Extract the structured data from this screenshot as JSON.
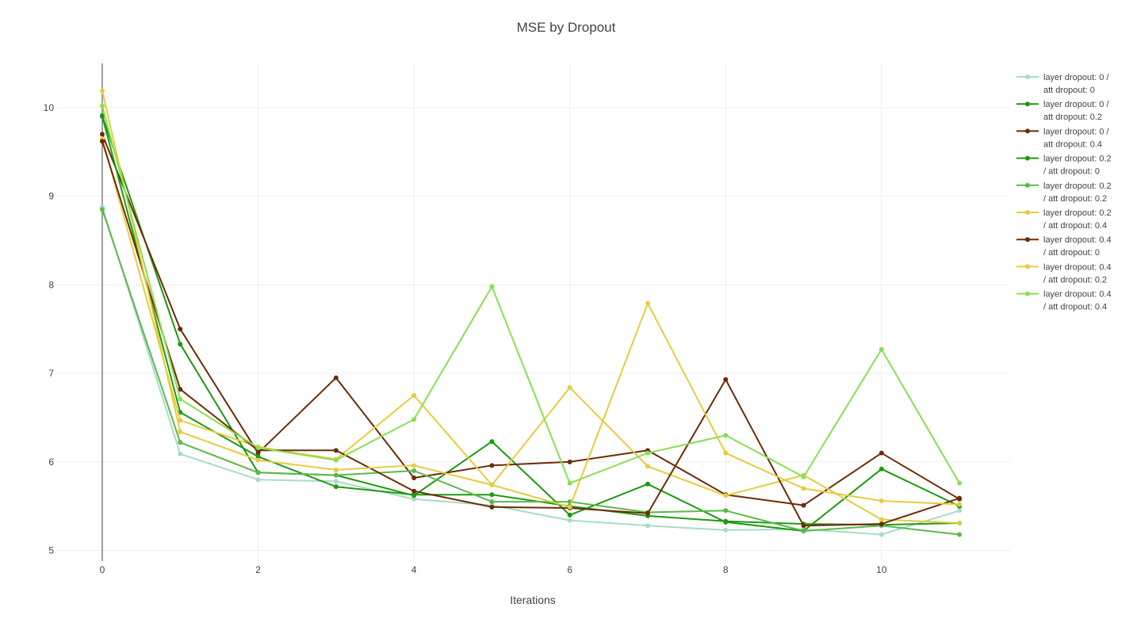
{
  "chart_data": {
    "type": "line",
    "title": "MSE by Dropout",
    "xlabel": "Iterations",
    "ylabel": "",
    "xlim": [
      -0.6,
      11.65
    ],
    "ylim": [
      4.88,
      10.5
    ],
    "xticks": [
      0,
      2,
      4,
      6,
      8,
      10
    ],
    "yticks": [
      5,
      6,
      7,
      8,
      9,
      10
    ],
    "grid": true,
    "legend": "right",
    "x": [
      0,
      1,
      2,
      3,
      4,
      5,
      6,
      7,
      8,
      9,
      10,
      11
    ],
    "series": [
      {
        "name": "layer dropout: 0 / att dropout: 0",
        "legend_lines": [
          "layer dropout: 0 /",
          "att dropout: 0"
        ],
        "color": "#a8dcc6",
        "values": [
          8.88,
          6.09,
          5.8,
          5.78,
          5.58,
          5.51,
          5.34,
          5.28,
          5.23,
          5.24,
          5.18,
          5.45
        ]
      },
      {
        "name": "layer dropout: 0 / att dropout: 0.2",
        "legend_lines": [
          "layer dropout: 0 /",
          "att dropout: 0.2"
        ],
        "color": "#1a9a0e",
        "values": [
          9.91,
          7.33,
          5.88,
          5.85,
          5.62,
          6.23,
          5.4,
          5.75,
          5.32,
          5.22,
          5.92,
          5.5
        ]
      },
      {
        "name": "layer dropout: 0 / att dropout: 0.4",
        "legend_lines": [
          "layer dropout: 0 /",
          "att dropout: 0.4"
        ],
        "color": "#6b2c06",
        "values": [
          9.7,
          7.5,
          6.1,
          6.95,
          5.82,
          5.96,
          6.0,
          6.13,
          5.63,
          5.51,
          6.1,
          5.58
        ]
      },
      {
        "name": "layer dropout: 0.2 / att dropout: 0",
        "legend_lines": [
          "layer dropout: 0.2",
          "/ att dropout: 0"
        ],
        "color": "#1f9a15",
        "values": [
          9.9,
          6.56,
          6.06,
          5.72,
          5.63,
          5.63,
          5.5,
          5.39,
          5.33,
          5.3,
          5.29,
          5.31
        ]
      },
      {
        "name": "layer dropout: 0.2 / att dropout: 0.2",
        "legend_lines": [
          "layer dropout: 0.2",
          "/ att dropout: 0.2"
        ],
        "color": "#5cb84a",
        "values": [
          8.85,
          6.22,
          5.88,
          5.85,
          5.9,
          5.55,
          5.55,
          5.43,
          5.45,
          5.22,
          5.28,
          5.18
        ]
      },
      {
        "name": "layer dropout: 0.2 / att dropout: 0.4",
        "legend_lines": [
          "layer dropout: 0.2",
          "/ att dropout: 0.4"
        ],
        "color": "#e6cc3d",
        "values": [
          9.65,
          6.47,
          6.17,
          6.03,
          6.75,
          5.74,
          6.84,
          5.95,
          5.62,
          5.85,
          5.35,
          5.31
        ]
      },
      {
        "name": "layer dropout: 0.4 / att dropout: 0",
        "legend_lines": [
          "layer dropout: 0.4",
          "/ att dropout: 0"
        ],
        "color": "#6b2c06",
        "values": [
          9.62,
          6.82,
          6.13,
          6.13,
          5.67,
          5.49,
          5.48,
          5.42,
          6.93,
          5.28,
          5.3,
          5.59
        ]
      },
      {
        "name": "layer dropout: 0.4 / att dropout: 0.2",
        "legend_lines": [
          "layer dropout: 0.4",
          "/ att dropout: 0.2"
        ],
        "color": "#e6cc3d",
        "values": [
          10.19,
          6.34,
          6.02,
          5.91,
          5.96,
          5.74,
          5.49,
          7.79,
          6.1,
          5.7,
          5.56,
          5.52
        ]
      },
      {
        "name": "layer dropout: 0.4 / att dropout: 0.4",
        "legend_lines": [
          "layer dropout: 0.4",
          "/ att dropout: 0.4"
        ],
        "color": "#88e050",
        "values": [
          10.02,
          6.71,
          6.16,
          6.02,
          6.48,
          7.98,
          5.76,
          6.1,
          6.3,
          5.83,
          7.27,
          5.76
        ]
      }
    ]
  }
}
